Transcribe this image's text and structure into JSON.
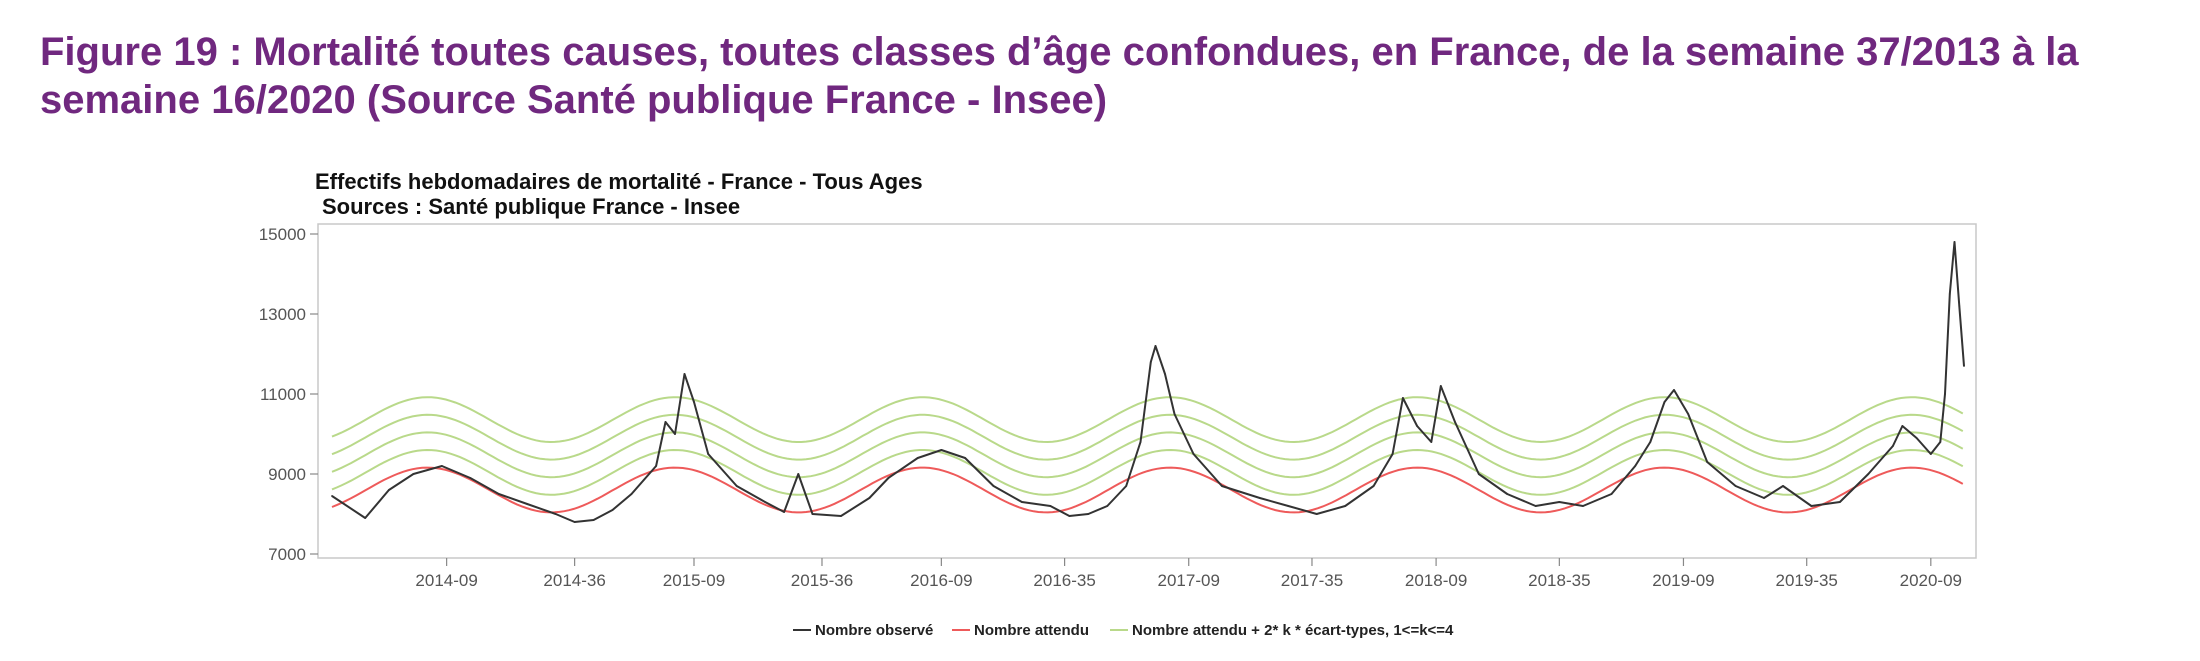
{
  "figure": {
    "title": "Figure 19 : Mortalité toutes causes, toutes classes d’âge confondues, en France, de la semaine 37/2013 à la semaine 16/2020 (Source Santé publique France - Insee)"
  },
  "colors": {
    "title": "#70287f",
    "observed": "#333333",
    "expected": "#ee5a5a",
    "threshold": "#b9d98a"
  },
  "chart_data": {
    "type": "line",
    "title": "Effectifs hebdomadaires de mortalité  - France - Tous Ages",
    "subtitle": "Sources : Santé publique France - Insee",
    "xlabel": "",
    "ylabel": "",
    "ylim": [
      7000,
      15000
    ],
    "yticks": [
      "7000",
      "9000",
      "11000",
      "13000",
      "15000"
    ],
    "grid": false,
    "legend_position": "bottom",
    "x_start_week": "2013-37",
    "x_end_week": "2020-16",
    "xticks": [
      "2014-09",
      "2014-36",
      "2015-09",
      "2015-36",
      "2016-09",
      "2016-35",
      "2017-09",
      "2017-35",
      "2018-09",
      "2018-35",
      "2019-09",
      "2019-35",
      "2020-09"
    ],
    "series": [
      {
        "name": "Nombre observé",
        "color": "#333333",
        "points": [
          [
            "2013-37",
            8450
          ],
          [
            "2013-44",
            7900
          ],
          [
            "2013-49",
            8600
          ],
          [
            "2014-02",
            9000
          ],
          [
            "2014-08",
            9200
          ],
          [
            "2014-14",
            8900
          ],
          [
            "2014-20",
            8500
          ],
          [
            "2014-26",
            8250
          ],
          [
            "2014-32",
            8000
          ],
          [
            "2014-36",
            7800
          ],
          [
            "2014-40",
            7850
          ],
          [
            "2014-44",
            8100
          ],
          [
            "2014-48",
            8500
          ],
          [
            "2015-01",
            9200
          ],
          [
            "2015-03",
            10300
          ],
          [
            "2015-05",
            10000
          ],
          [
            "2015-07",
            11500
          ],
          [
            "2015-09",
            10800
          ],
          [
            "2015-12",
            9500
          ],
          [
            "2015-18",
            8700
          ],
          [
            "2015-24",
            8300
          ],
          [
            "2015-28",
            8050
          ],
          [
            "2015-31",
            9000
          ],
          [
            "2015-34",
            8000
          ],
          [
            "2015-40",
            7950
          ],
          [
            "2015-46",
            8400
          ],
          [
            "2015-50",
            8900
          ],
          [
            "2016-04",
            9400
          ],
          [
            "2016-09",
            9600
          ],
          [
            "2016-14",
            9400
          ],
          [
            "2016-20",
            8700
          ],
          [
            "2016-26",
            8300
          ],
          [
            "2016-32",
            8200
          ],
          [
            "2016-36",
            7950
          ],
          [
            "2016-40",
            8000
          ],
          [
            "2016-44",
            8200
          ],
          [
            "2016-48",
            8700
          ],
          [
            "2016-51",
            9800
          ],
          [
            "2017-01",
            11800
          ],
          [
            "2017-02",
            12200
          ],
          [
            "2017-04",
            11500
          ],
          [
            "2017-06",
            10500
          ],
          [
            "2017-10",
            9500
          ],
          [
            "2017-16",
            8700
          ],
          [
            "2017-24",
            8400
          ],
          [
            "2017-30",
            8200
          ],
          [
            "2017-36",
            8000
          ],
          [
            "2017-42",
            8200
          ],
          [
            "2017-48",
            8700
          ],
          [
            "2017-52",
            9500
          ],
          [
            "2018-02",
            10900
          ],
          [
            "2018-05",
            10200
          ],
          [
            "2018-08",
            9800
          ],
          [
            "2018-10",
            11200
          ],
          [
            "2018-13",
            10300
          ],
          [
            "2018-18",
            9000
          ],
          [
            "2018-24",
            8500
          ],
          [
            "2018-30",
            8200
          ],
          [
            "2018-35",
            8300
          ],
          [
            "2018-40",
            8200
          ],
          [
            "2018-46",
            8500
          ],
          [
            "2018-51",
            9200
          ],
          [
            "2019-02",
            9800
          ],
          [
            "2019-05",
            10800
          ],
          [
            "2019-07",
            11100
          ],
          [
            "2019-10",
            10500
          ],
          [
            "2019-14",
            9300
          ],
          [
            "2019-20",
            8700
          ],
          [
            "2019-26",
            8400
          ],
          [
            "2019-30",
            8700
          ],
          [
            "2019-36",
            8200
          ],
          [
            "2019-42",
            8300
          ],
          [
            "2019-48",
            9000
          ],
          [
            "2020-01",
            9700
          ],
          [
            "2020-03",
            10200
          ],
          [
            "2020-06",
            9900
          ],
          [
            "2020-09",
            9500
          ],
          [
            "2020-11",
            9800
          ],
          [
            "2020-12",
            11000
          ],
          [
            "2020-13",
            13500
          ],
          [
            "2020-14",
            14800
          ],
          [
            "2020-15",
            13200
          ],
          [
            "2020-16",
            11700
          ]
        ]
      },
      {
        "name": "Nombre attendu",
        "color": "#ee5a5a",
        "mean": 8600,
        "amplitude": 560,
        "peak_week": 5
      },
      {
        "name": "Nombre attendu + 2* k * écart-types, 1<=k<=4",
        "color": "#b9d98a",
        "step": 440,
        "k": [
          1,
          2,
          3,
          4
        ]
      }
    ]
  },
  "legend": {
    "observed": "Nombre observé",
    "expected": "Nombre attendu",
    "threshold": "Nombre attendu + 2* k * écart-types, 1<=k<=4"
  }
}
